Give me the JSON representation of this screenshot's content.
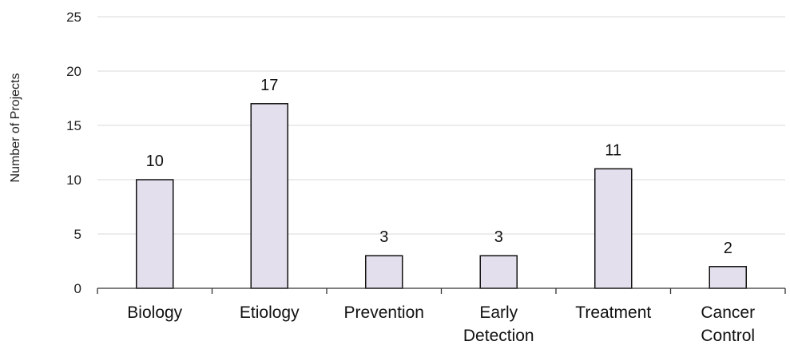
{
  "chart_data": {
    "type": "bar",
    "categories": [
      [
        "Biology"
      ],
      [
        "Etiology"
      ],
      [
        "Prevention"
      ],
      [
        "Early",
        "Detection"
      ],
      [
        "Treatment"
      ],
      [
        "Cancer",
        "Control"
      ]
    ],
    "values": [
      10,
      17,
      3,
      3,
      11,
      2
    ],
    "data_labels": [
      "10",
      "17",
      "3",
      "3",
      "11",
      "2"
    ],
    "title": "",
    "xlabel": "",
    "ylabel": "Number of Projects",
    "ylim": [
      0,
      25
    ],
    "yticks": [
      0,
      5,
      10,
      15,
      20,
      25
    ],
    "ytick_labels": [
      "0",
      "5",
      "10",
      "15",
      "20",
      "25"
    ],
    "grid": true,
    "legend": "none",
    "colors": {
      "bar_fill": "#e4dfec",
      "bar_edge": "#111111",
      "grid": "#d9d9d9"
    }
  }
}
